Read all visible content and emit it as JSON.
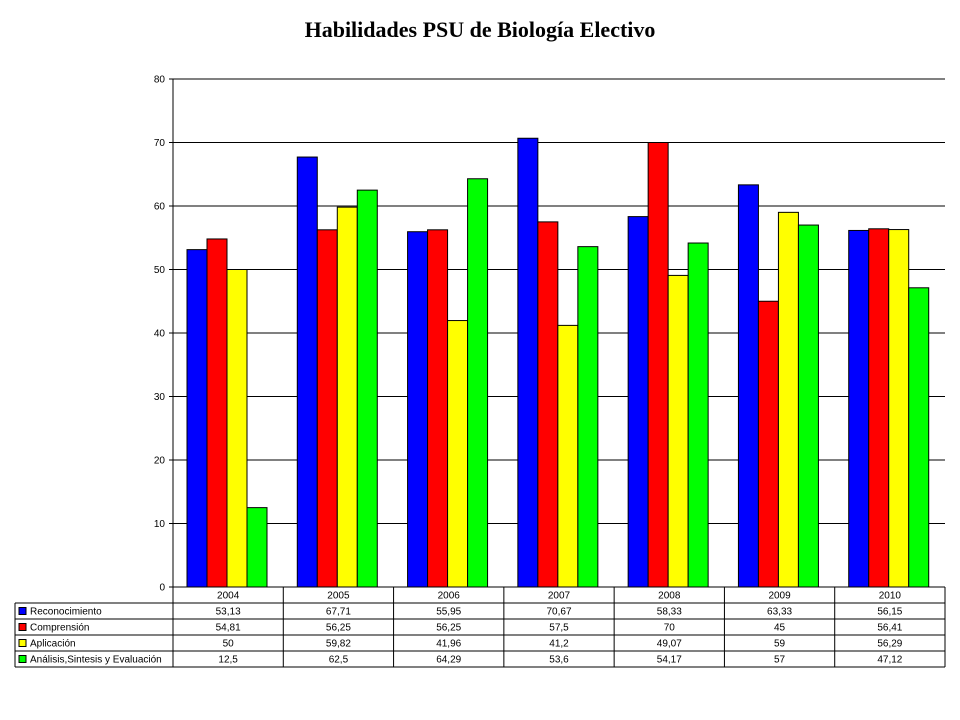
{
  "chart_data": {
    "type": "bar",
    "title": "Habilidades PSU de Biología Electivo",
    "categories": [
      "2004",
      "2005",
      "2006",
      "2007",
      "2008",
      "2009",
      "2010"
    ],
    "series": [
      {
        "name": "Reconocimiento",
        "color": "#0000ff",
        "values": [
          53.13,
          67.71,
          55.95,
          70.67,
          58.33,
          63.33,
          56.15
        ],
        "labels": [
          "53,13",
          "67,71",
          "55,95",
          "70,67",
          "58,33",
          "63,33",
          "56,15"
        ]
      },
      {
        "name": "Comprensión",
        "color": "#ff0000",
        "values": [
          54.81,
          56.25,
          56.25,
          57.5,
          70,
          45,
          56.41
        ],
        "labels": [
          "54,81",
          "56,25",
          "56,25",
          "57,5",
          "70",
          "45",
          "56,41"
        ]
      },
      {
        "name": "Aplicación",
        "color": "#ffff00",
        "values": [
          50,
          59.82,
          41.96,
          41.2,
          49.07,
          59,
          56.29
        ],
        "labels": [
          "50",
          "59,82",
          "41,96",
          "41,2",
          "49,07",
          "59",
          "56,29"
        ]
      },
      {
        "name": "Análisis,Sintesis y Evaluación",
        "color": "#00ff00",
        "values": [
          12.5,
          62.5,
          64.29,
          53.6,
          54.17,
          57,
          47.12
        ],
        "labels": [
          "12,5",
          "62,5",
          "64,29",
          "53,6",
          "54,17",
          "57",
          "47,12"
        ]
      }
    ],
    "ylim": [
      0,
      80
    ],
    "yticks": [
      "0",
      "10",
      "20",
      "30",
      "40",
      "50",
      "60",
      "70",
      "80"
    ],
    "grid": true,
    "legend": "data-table"
  }
}
